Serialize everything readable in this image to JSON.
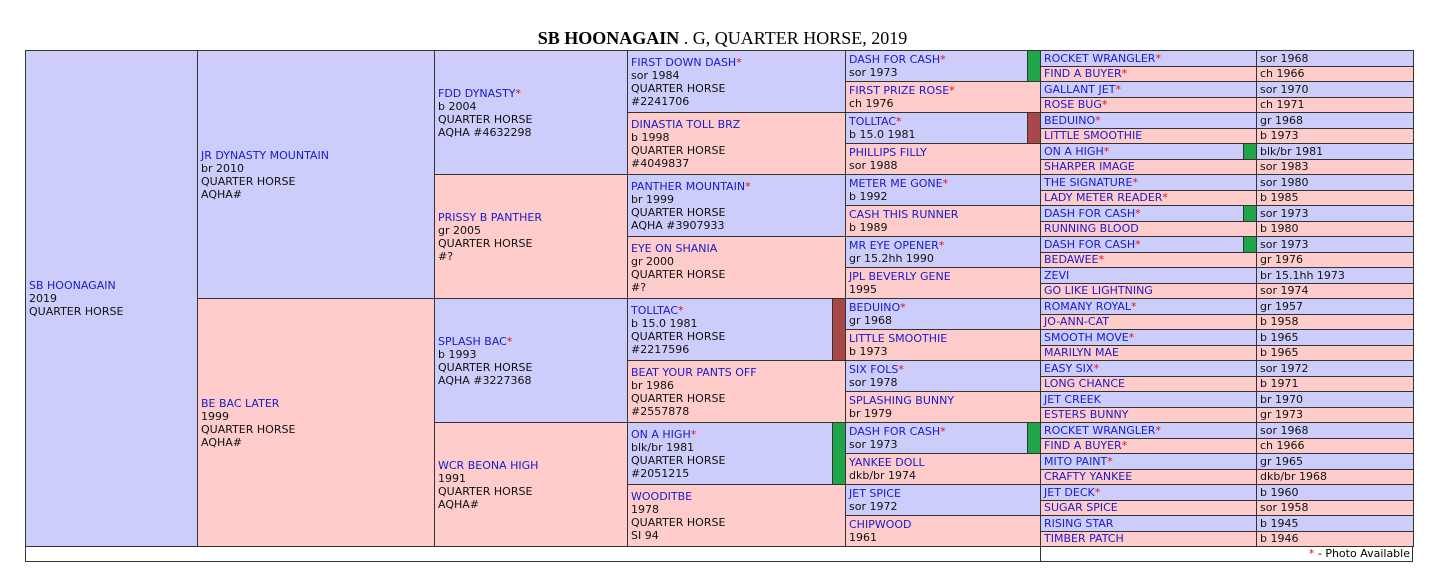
{
  "title": {
    "name": "SB HOONAGAIN",
    "rest": " . G, QUARTER HORSE, 2019"
  },
  "generations": [
    [
      {
        "name": "SB HOONAGAIN",
        "lines": [
          "2019",
          "QUARTER HORSE"
        ]
      }
    ],
    [
      {
        "name": "JR DYNASTY MOUNTAIN",
        "lines": [
          "br 2010",
          "QUARTER HORSE",
          "AQHA#"
        ]
      },
      {
        "name": "BE BAC LATER",
        "lines": [
          "1999",
          "QUARTER HORSE",
          "AQHA#"
        ]
      }
    ],
    [
      {
        "name": "FDD DYNASTY",
        "star": "*",
        "lines": [
          "b 2004",
          "QUARTER HORSE",
          "AQHA #4632298"
        ]
      },
      {
        "name": "PRISSY B PANTHER",
        "lines": [
          "gr 2005",
          "QUARTER HORSE",
          "#?"
        ]
      },
      {
        "name": "SPLASH BAC",
        "star": "*",
        "lines": [
          "b 1993",
          "QUARTER HORSE",
          "AQHA #3227368"
        ]
      },
      {
        "name": "WCR BEONA HIGH",
        "lines": [
          "1991",
          "QUARTER HORSE",
          "AQHA#"
        ]
      }
    ],
    [
      {
        "name": "FIRST DOWN DASH",
        "star": "*",
        "lines": [
          "sor 1984",
          "QUARTER HORSE",
          "#2241706"
        ]
      },
      {
        "name": "DINASTIA TOLL BRZ",
        "lines": [
          "b 1998",
          "QUARTER HORSE",
          "#4049837"
        ]
      },
      {
        "name": "PANTHER MOUNTAIN",
        "star": "*",
        "lines": [
          "br 1999",
          "QUARTER HORSE",
          "AQHA #3907933"
        ]
      },
      {
        "name": "EYE ON SHANIA",
        "lines": [
          "gr 2000",
          "QUARTER HORSE",
          "#?"
        ]
      },
      {
        "name": "TOLLTAC",
        "star": "*",
        "lines": [
          "b 15.0 1981",
          "QUARTER HORSE",
          "#2217596"
        ],
        "marker": "#a84848"
      },
      {
        "name": "BEAT YOUR PANTS OFF",
        "lines": [
          "br 1986",
          "QUARTER HORSE",
          "#2557878"
        ]
      },
      {
        "name": "ON A HIGH",
        "star": "*",
        "lines": [
          "blk/br 1981",
          "QUARTER HORSE",
          "#2051215"
        ],
        "marker": "#1fa64a"
      },
      {
        "name": "WOODITBE",
        "lines": [
          "1978",
          "QUARTER HORSE",
          "SI 94"
        ]
      }
    ],
    [
      {
        "name": "DASH FOR CASH",
        "star": "*",
        "lines": [
          "sor 1973"
        ],
        "marker": "#1fa64a"
      },
      {
        "name": "FIRST PRIZE ROSE",
        "star": "*",
        "lines": [
          "ch 1976"
        ]
      },
      {
        "name": "TOLLTAC",
        "star": "*",
        "lines": [
          "b 15.0 1981"
        ],
        "marker": "#a84848"
      },
      {
        "name": "PHILLIPS FILLY",
        "lines": [
          "sor 1988"
        ]
      },
      {
        "name": "METER ME GONE",
        "star": "*",
        "lines": [
          "b 1992"
        ]
      },
      {
        "name": "CASH THIS RUNNER",
        "lines": [
          "b 1989"
        ]
      },
      {
        "name": "MR EYE OPENER",
        "star": "*",
        "lines": [
          "gr 15.2hh 1990"
        ]
      },
      {
        "name": "JPL BEVERLY GENE",
        "lines": [
          "1995"
        ]
      },
      {
        "name": "BEDUINO",
        "star": "*",
        "lines": [
          "gr 1968"
        ]
      },
      {
        "name": "LITTLE SMOOTHIE",
        "lines": [
          "b 1973"
        ]
      },
      {
        "name": "SIX FOLS",
        "star": "*",
        "lines": [
          "sor 1978"
        ]
      },
      {
        "name": "SPLASHING BUNNY",
        "lines": [
          "br 1979"
        ]
      },
      {
        "name": "DASH FOR CASH",
        "star": "*",
        "lines": [
          "sor 1973"
        ],
        "marker": "#1fa64a"
      },
      {
        "name": "YANKEE DOLL",
        "lines": [
          "dkb/br 1974"
        ]
      },
      {
        "name": "JET SPICE",
        "lines": [
          "sor 1972"
        ]
      },
      {
        "name": "CHIPWOOD",
        "lines": [
          "1961"
        ]
      }
    ],
    [
      {
        "name": "ROCKET WRANGLER",
        "star": "*",
        "info": "sor 1968"
      },
      {
        "name": "FIND A BUYER",
        "star": "*",
        "info": "ch 1966"
      },
      {
        "name": "GALLANT JET",
        "star": "*",
        "info": "sor 1970"
      },
      {
        "name": "ROSE BUG",
        "star": "*",
        "info": "ch 1971"
      },
      {
        "name": "BEDUINO",
        "star": "*",
        "info": "gr 1968"
      },
      {
        "name": "LITTLE SMOOTHIE",
        "info": "b 1973"
      },
      {
        "name": "ON A HIGH",
        "star": "*",
        "info": "blk/br 1981",
        "marker": "#1fa64a"
      },
      {
        "name": "SHARPER IMAGE",
        "info": "sor 1983"
      },
      {
        "name": "THE SIGNATURE",
        "star": "*",
        "info": "sor 1980"
      },
      {
        "name": "LADY METER READER",
        "star": "*",
        "info": "b 1985"
      },
      {
        "name": "DASH FOR CASH",
        "star": "*",
        "info": "sor 1973",
        "marker": "#1fa64a"
      },
      {
        "name": "RUNNING BLOOD",
        "info": "b 1980"
      },
      {
        "name": "DASH FOR CASH",
        "star": "*",
        "info": "sor 1973",
        "marker": "#1fa64a"
      },
      {
        "name": "BEDAWEE",
        "star": "*",
        "info": "gr 1976"
      },
      {
        "name": "ZEVI",
        "info": "br 15.1hh 1973"
      },
      {
        "name": "GO LIKE LIGHTNING",
        "info": "sor 1974"
      },
      {
        "name": "ROMANY ROYAL",
        "star": "*",
        "info": "gr 1957"
      },
      {
        "name": "JO-ANN-CAT",
        "info": "b 1958"
      },
      {
        "name": "SMOOTH MOVE",
        "star": "*",
        "info": "b 1965"
      },
      {
        "name": "MARILYN MAE",
        "info": "b 1965"
      },
      {
        "name": "EASY SIX",
        "star": "*",
        "info": "sor 1972"
      },
      {
        "name": "LONG CHANCE",
        "info": "b 1971"
      },
      {
        "name": "JET CREEK",
        "info": "br 1970"
      },
      {
        "name": "ESTERS BUNNY",
        "info": "gr 1973"
      },
      {
        "name": "ROCKET WRANGLER",
        "star": "*",
        "info": "sor 1968"
      },
      {
        "name": "FIND A BUYER",
        "star": "*",
        "info": "ch 1966"
      },
      {
        "name": "MITO PAINT",
        "star": "*",
        "info": "gr 1965"
      },
      {
        "name": "CRAFTY YANKEE",
        "info": "dkb/br 1968"
      },
      {
        "name": "JET DECK",
        "star": "*",
        "info": "b 1960"
      },
      {
        "name": "SUGAR SPICE",
        "info": "sor 1958"
      },
      {
        "name": "RISING STAR",
        "info": "b 1945"
      },
      {
        "name": "TIMBER PATCH",
        "info": "b 1946"
      }
    ]
  ],
  "footer": {
    "star": "*",
    "text": " - Photo Available"
  }
}
